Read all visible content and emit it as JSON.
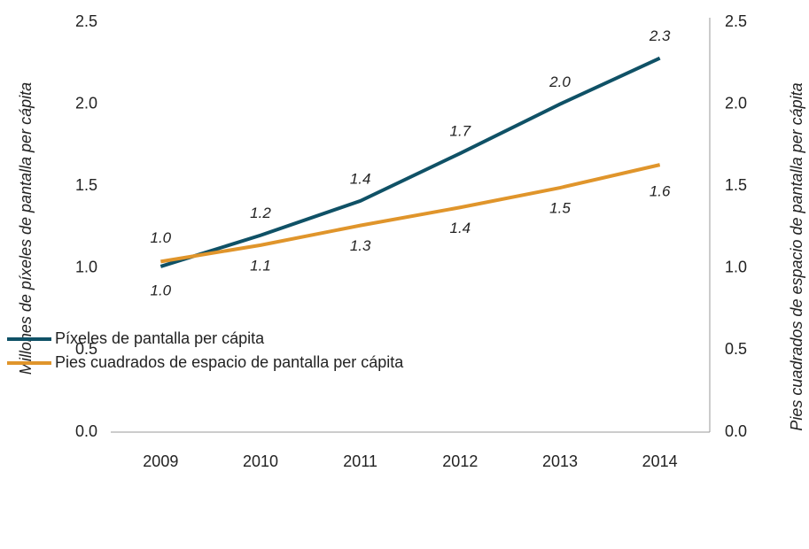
{
  "chart_data": {
    "type": "line",
    "categories": [
      "2009",
      "2010",
      "2011",
      "2012",
      "2013",
      "2014"
    ],
    "series": [
      {
        "name": "Píxeles de pantalla per cápita",
        "color": "#0f5166",
        "values": [
          1.01,
          1.2,
          1.41,
          1.7,
          2.0,
          2.28
        ],
        "value_labels": [
          "1.0",
          "1.2",
          "1.4",
          "1.7",
          "2.0",
          "2.3"
        ]
      },
      {
        "name": "Pies cuadrados de espacio de pantalla per cápita",
        "color": "#e0952b",
        "axis": "y2",
        "values": [
          1.04,
          1.14,
          1.26,
          1.37,
          1.49,
          1.63
        ],
        "value_labels": [
          "1.0",
          "1.1",
          "1.3",
          "1.4",
          "1.5",
          "1.6"
        ]
      }
    ],
    "ylabel": "Millones de píxeles de pantalla per cápita",
    "y2label": "Pies cuadrados de espacio de pantalla per cápita",
    "ylim": [
      0,
      2.5
    ],
    "yticks": [
      {
        "value": 0,
        "label": "0.0"
      },
      0.5,
      {
        "value": 1,
        "label": "1.0"
      },
      1.5,
      {
        "value": 2,
        "label": "2.0"
      },
      2.5
    ],
    "y2lim": [
      0,
      2.5
    ],
    "y2ticks": [
      {
        "value": 0,
        "label": "0.0"
      },
      0.5,
      {
        "value": 1,
        "label": "1.0"
      },
      1.5,
      {
        "value": 2,
        "label": "2.0"
      },
      2.5
    ],
    "legend": "bottom-left"
  }
}
